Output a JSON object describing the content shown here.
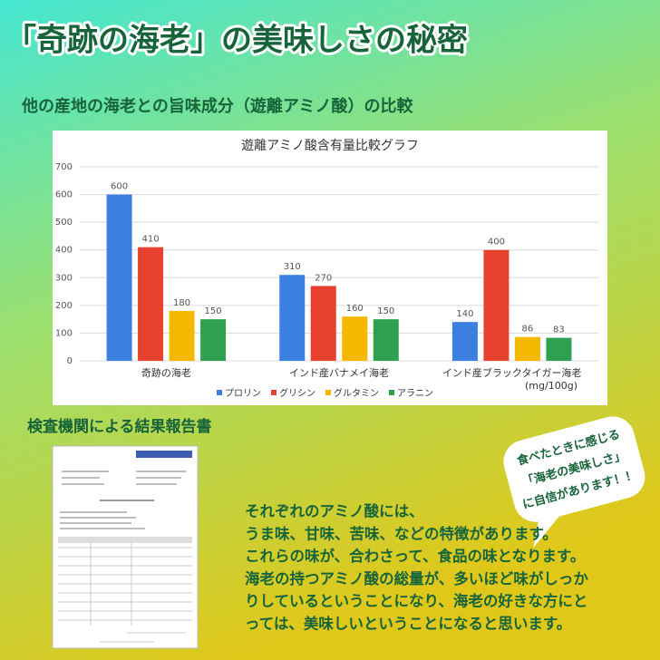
{
  "header": {
    "title": "「奇跡の海老」の美味しさの秘密",
    "subtitle": "他の産地の海老との旨味成分（遊離アミノ酸）の比較"
  },
  "chart_data": {
    "type": "bar",
    "title": "遊離アミノ酸含有量比較グラフ",
    "categories": [
      "奇跡の海老",
      "インド産バナメイ海老",
      "インド産ブラックタイガー海老"
    ],
    "series": [
      {
        "name": "プロリン",
        "color": "#3b7fe0",
        "values": [
          600,
          310,
          140
        ]
      },
      {
        "name": "グリシン",
        "color": "#e8412f",
        "values": [
          410,
          270,
          400
        ]
      },
      {
        "name": "グルタミン",
        "color": "#f5b800",
        "values": [
          180,
          160,
          86
        ]
      },
      {
        "name": "アラニン",
        "color": "#2fa050",
        "values": [
          150,
          150,
          83
        ]
      }
    ],
    "ylim": [
      0,
      700
    ],
    "yticks": [
      0,
      100,
      200,
      300,
      400,
      500,
      600,
      700
    ],
    "grid": true,
    "legend": "bottom",
    "annotation": "(mg/100g)"
  },
  "report": {
    "heading": "検査機関による結果報告書"
  },
  "bubble": {
    "lines": [
      "食べたときに感じる",
      "「海老の美味しさ」",
      "に自信があります！！"
    ]
  },
  "body": {
    "lines": [
      "それぞれのアミノ酸には、",
      "うま味、甘味、苦味、などの特徴があります。",
      "これらの味が、合わさって、食品の味となります。",
      "海老の持つアミノ酸の総量が、多いほど味がしっか",
      "りしているということになり、海老の好きな方にと",
      "っては、美味しいということになると思います。"
    ]
  }
}
